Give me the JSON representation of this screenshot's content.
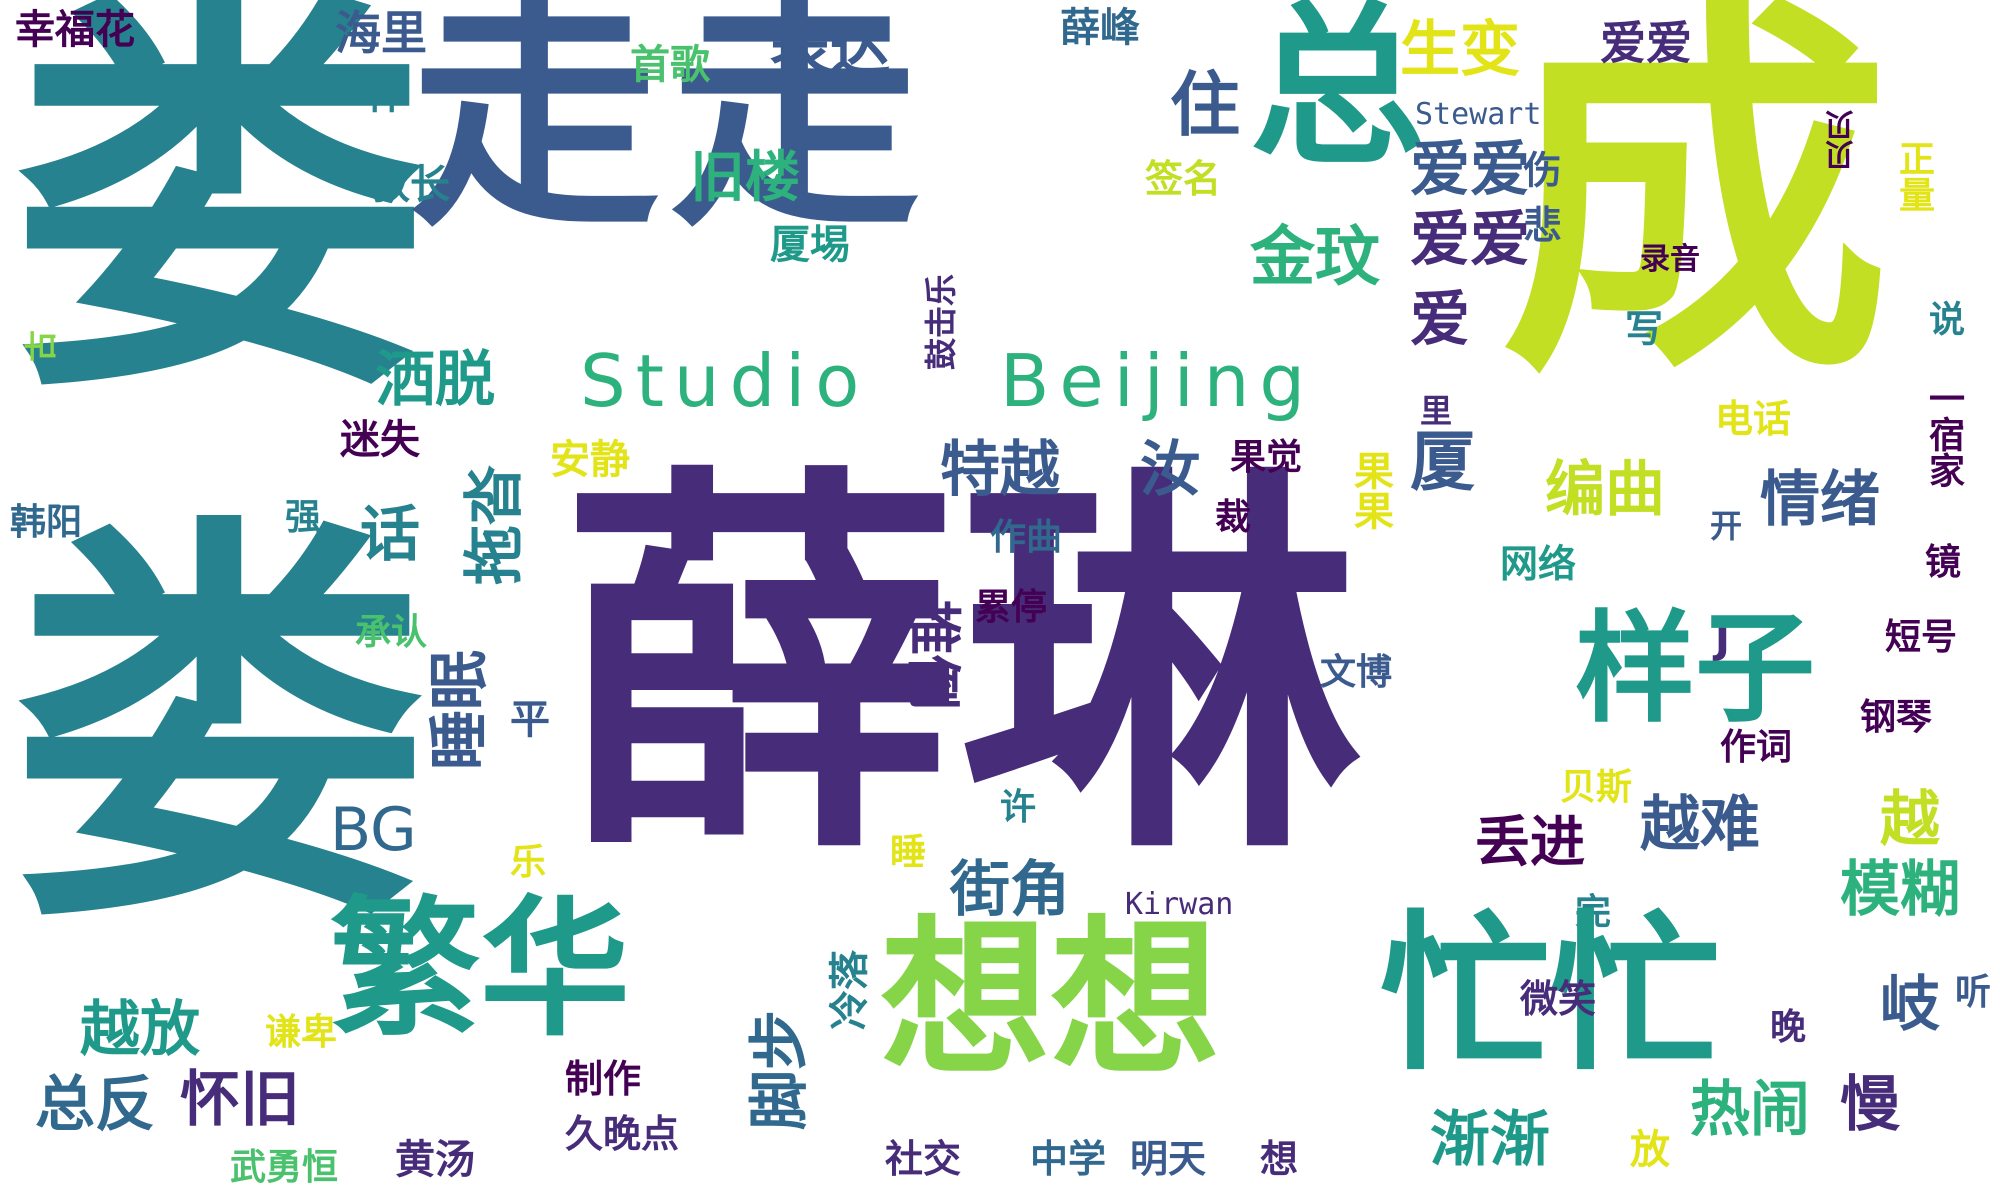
{
  "palette": {
    "purple": "#472c7a",
    "blue": "#3b5b8f",
    "steel": "#2d6e8e",
    "teal": "#26828e",
    "sea": "#1f9a8a",
    "green": "#2db27d",
    "lime": "#86d549",
    "yellow": "#c2df23",
    "gold": "#e2e418",
    "dark": "#440154",
    "navy": "#31688e",
    "mint": "#4ac16d"
  },
  "words": {
    "w01": "娄",
    "w02": "娄",
    "w03": "走走",
    "w04": "成",
    "w05": "薛琳",
    "w06": "总",
    "w07": "生变",
    "w08": "住",
    "w09": "表达",
    "w10": "海里",
    "w11": "首歌",
    "w12": "薛峰",
    "w13": "爱爱",
    "w14": "幸福花",
    "w15": "杯",
    "w16": "Stewart",
    "w17": "贝贝",
    "w18": "旧楼",
    "w19": "爱爱",
    "w20": "伤",
    "w21": "悲",
    "w22": "教长",
    "w23": "签名",
    "w24": "金玟",
    "w25": "爱爱",
    "w26": "厦埸",
    "w27": "录音",
    "w28": "写",
    "w29": "正量",
    "w30": "说",
    "w31": "古",
    "w32": "Studio",
    "w33": "Beijing",
    "w34": "爱",
    "w35": "洒脱",
    "w36": "鼓击乐",
    "w37": "厦",
    "w38": "里",
    "w39": "电话",
    "w40": "迷失",
    "w41": "安静",
    "w42": "特越",
    "w43": "汝",
    "w44": "果觉",
    "w45": "果果",
    "w46": "编曲",
    "w47": "情绪",
    "w48": "开",
    "w49": "韩阳",
    "w50": "强",
    "w51": "裁",
    "w52": "话",
    "w53": "拖沓",
    "w54": "作曲",
    "w55": "网络",
    "w56": "一宿家",
    "w57": "承认",
    "w58": "累停",
    "w59": "推倒",
    "w60": "J",
    "w61": "样子",
    "w62": "短号",
    "w63": "文博",
    "w64": "睡眠",
    "w65": "平",
    "w66": "钢琴",
    "w67": "作词",
    "w68": "贝斯",
    "w69": "许",
    "w70": "BG",
    "w71": "越",
    "w72": "丢进",
    "w73": "越难",
    "w74": "乐",
    "w75": "睡",
    "w76": "街角",
    "w77": "Kirwan",
    "w78": "模糊",
    "w79": "完",
    "w80": "繁华",
    "w81": "想想",
    "w82": "忙忙",
    "w83": "越放",
    "w84": "谦卑",
    "w85": "冷落",
    "w86": "微笑",
    "w87": "晚",
    "w88": "岐",
    "w89": "听",
    "w90": "总反",
    "w91": "怀旧",
    "w92": "脚步",
    "w93": "制作",
    "w94": "渐渐",
    "w95": "热闹",
    "w96": "慢",
    "w97": "武勇恒",
    "w98": "黄汤",
    "w99": "久晚点",
    "w100": "社交",
    "w101": "中学",
    "w102": "明天",
    "w103": "想",
    "w104": "放",
    "w105": "镜"
  }
}
